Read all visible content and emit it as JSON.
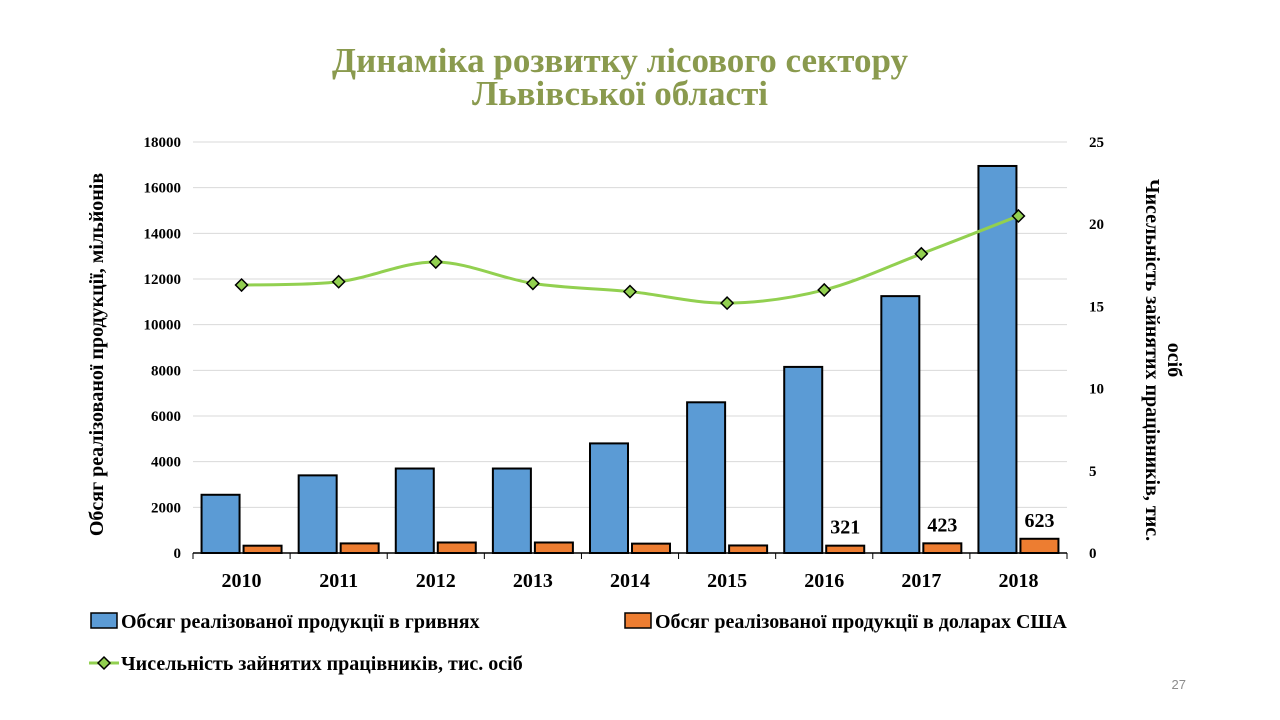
{
  "slide": {
    "title_line1": "Динаміка розвитку лісового сектору",
    "title_line2": "Львівської області",
    "page_number": "27"
  },
  "colors": {
    "title": "#8a9a4e",
    "series_uah": "#5b9bd5",
    "series_usd": "#ed7d31",
    "series_workers": "#92d050",
    "grid": "#d9d9d9"
  },
  "chart_data": {
    "type": "bar",
    "categories": [
      "2010",
      "2011",
      "2012",
      "2013",
      "2014",
      "2015",
      "2016",
      "2017",
      "2018"
    ],
    "series": [
      {
        "name": "Обсяг реалізованої продукції в гривнях",
        "type": "bar",
        "axis": "left",
        "values": [
          2550,
          3400,
          3700,
          3700,
          4800,
          6600,
          8150,
          11250,
          16950
        ]
      },
      {
        "name": "Обсяг реалізованої продукції в доларах США",
        "type": "bar",
        "axis": "left",
        "values": [
          320,
          420,
          460,
          460,
          410,
          330,
          321,
          423,
          623
        ],
        "data_labels": [
          "",
          "",
          "",
          "",
          "",
          "",
          "321",
          "423",
          "623"
        ]
      },
      {
        "name": "Чисельність зайнятих працівників, тис. осіб",
        "type": "line",
        "axis": "right",
        "values": [
          16.3,
          16.5,
          17.7,
          16.4,
          15.9,
          15.2,
          16.0,
          18.2,
          20.5
        ]
      }
    ],
    "ylabel": "Обсяг реалізованої продукції, мільйонів",
    "y2label_line1": "Чисельність зайнятих працівників, тис.",
    "y2label_line2": "осіб",
    "ylim": [
      0,
      18000
    ],
    "y2lim": [
      0,
      25
    ],
    "yticks": [
      "0",
      "2000",
      "4000",
      "6000",
      "8000",
      "10000",
      "12000",
      "14000",
      "16000",
      "18000"
    ],
    "y2ticks": [
      "0",
      "5",
      "10",
      "15",
      "20",
      "25"
    ],
    "grid": true,
    "legend_position": "bottom"
  }
}
